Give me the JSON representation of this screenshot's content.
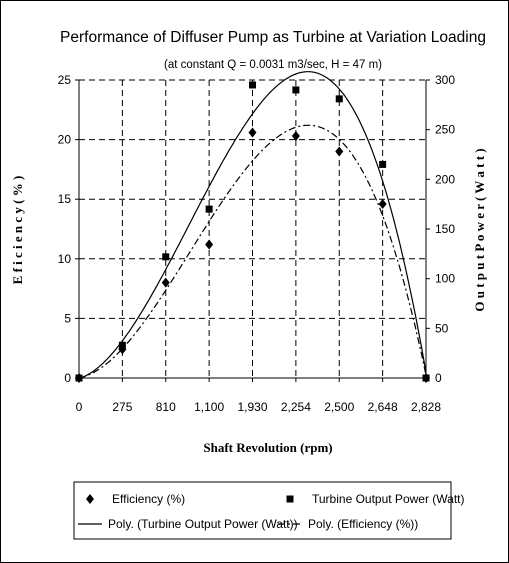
{
  "chart_data": {
    "type": "scatter",
    "title": "Performance of Diffuser Pump as Turbine at Variation Loading",
    "subtitle": "(at constant Q = 0.0031 m3/sec, H = 47 m)",
    "xlabel": "Shaft Revolution (rpm)",
    "ylabel_left": "E f i c i e n c y  ( %  )",
    "ylabel_right": "O u t p u t  P o w e r  ( W a t t )",
    "categories": [
      "0",
      "275",
      "810",
      "1,100",
      "1,930",
      "2,254",
      "2,500",
      "2,648",
      "2,828"
    ],
    "y_left": {
      "min": 0,
      "max": 25,
      "ticks": [
        "0",
        "5",
        "10",
        "15",
        "20",
        "25"
      ]
    },
    "y_right": {
      "min": 0,
      "max": 300,
      "ticks": [
        "0",
        "50",
        "100",
        "150",
        "200",
        "250",
        "300"
      ]
    },
    "grid": true,
    "legend_position": "bottom",
    "series": [
      {
        "name": "Efficiency (%)",
        "axis": "left",
        "marker": "diamond",
        "values": [
          0,
          2.4,
          8.0,
          11.2,
          20.6,
          20.3,
          19.0,
          14.6,
          0
        ]
      },
      {
        "name": "Turbine Output Power (Watt)",
        "axis": "right",
        "marker": "square",
        "values": [
          0,
          33,
          122,
          170,
          295,
          290,
          281,
          215,
          0
        ]
      },
      {
        "name": "Poly. (Turbine Output Power (Watt))",
        "axis": "right",
        "style": "solid",
        "trend_of": "Turbine Output Power (Watt)",
        "values": []
      },
      {
        "name": "Poly. (Efficiency (%))",
        "axis": "left",
        "style": "dashdot",
        "trend_of": "Efficiency (%)",
        "values": []
      }
    ]
  }
}
